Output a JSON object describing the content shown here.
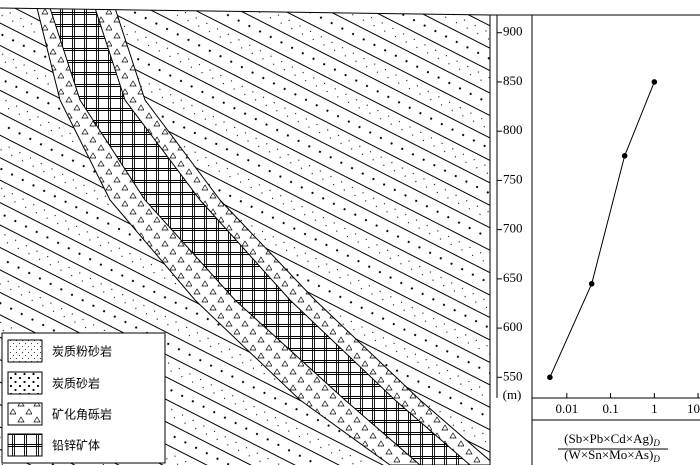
{
  "chart_data": {
    "type": "line",
    "x": [
      0.0041,
      0.037,
      0.21,
      1.0
    ],
    "values": [
      550,
      645,
      775,
      850
    ],
    "xscale": "log",
    "xlim": [
      0.0016,
      10.5
    ],
    "xticks": [
      0.01,
      0.1,
      1,
      10
    ],
    "ylim": [
      529,
      918
    ],
    "yticks": [
      550,
      600,
      650,
      700,
      750,
      800,
      850,
      900
    ],
    "y_label": "(m)",
    "x_label": {
      "numerator": "(Sb×Pb×Cd×Ag)",
      "denominator": "(W×Sn×Mo×As)",
      "subscript": "D"
    },
    "color": "#000000"
  },
  "cross_section": {
    "legend": [
      "炭质粉砂岩",
      "炭质砂岩",
      "矿化角砾岩",
      "铅锌矿体"
    ]
  }
}
